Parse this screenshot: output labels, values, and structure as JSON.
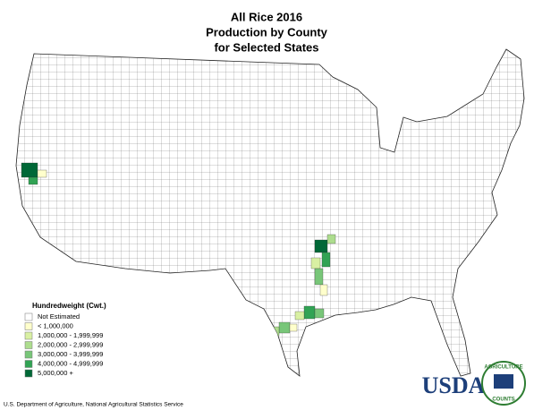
{
  "header": {
    "lines": [
      "All Rice 2016",
      "Production by County",
      "for Selected States"
    ]
  },
  "legend": {
    "title": "Hundredweight (Cwt.)",
    "items": [
      {
        "label": "Not Estimated",
        "color": "#ffffff"
      },
      {
        "label": "< 1,000,000",
        "color": "#ffffcc"
      },
      {
        "label": "1,000,000 - 1,999,999",
        "color": "#d9f0a3"
      },
      {
        "label": "2,000,000 - 2,999,999",
        "color": "#addd8e"
      },
      {
        "label": "3,000,000 - 3,999,999",
        "color": "#78c679"
      },
      {
        "label": "4,000,000 - 4,999,999",
        "color": "#31a354"
      },
      {
        "label": "5,000,000 +",
        "color": "#006837"
      }
    ]
  },
  "footer": {
    "source": "U.S. Department of Agriculture, National Agricultural Statistics Service"
  },
  "logo": {
    "text": "USDA",
    "ring_top": "AGRICULTURE",
    "ring_bottom": "COUNTS"
  }
}
